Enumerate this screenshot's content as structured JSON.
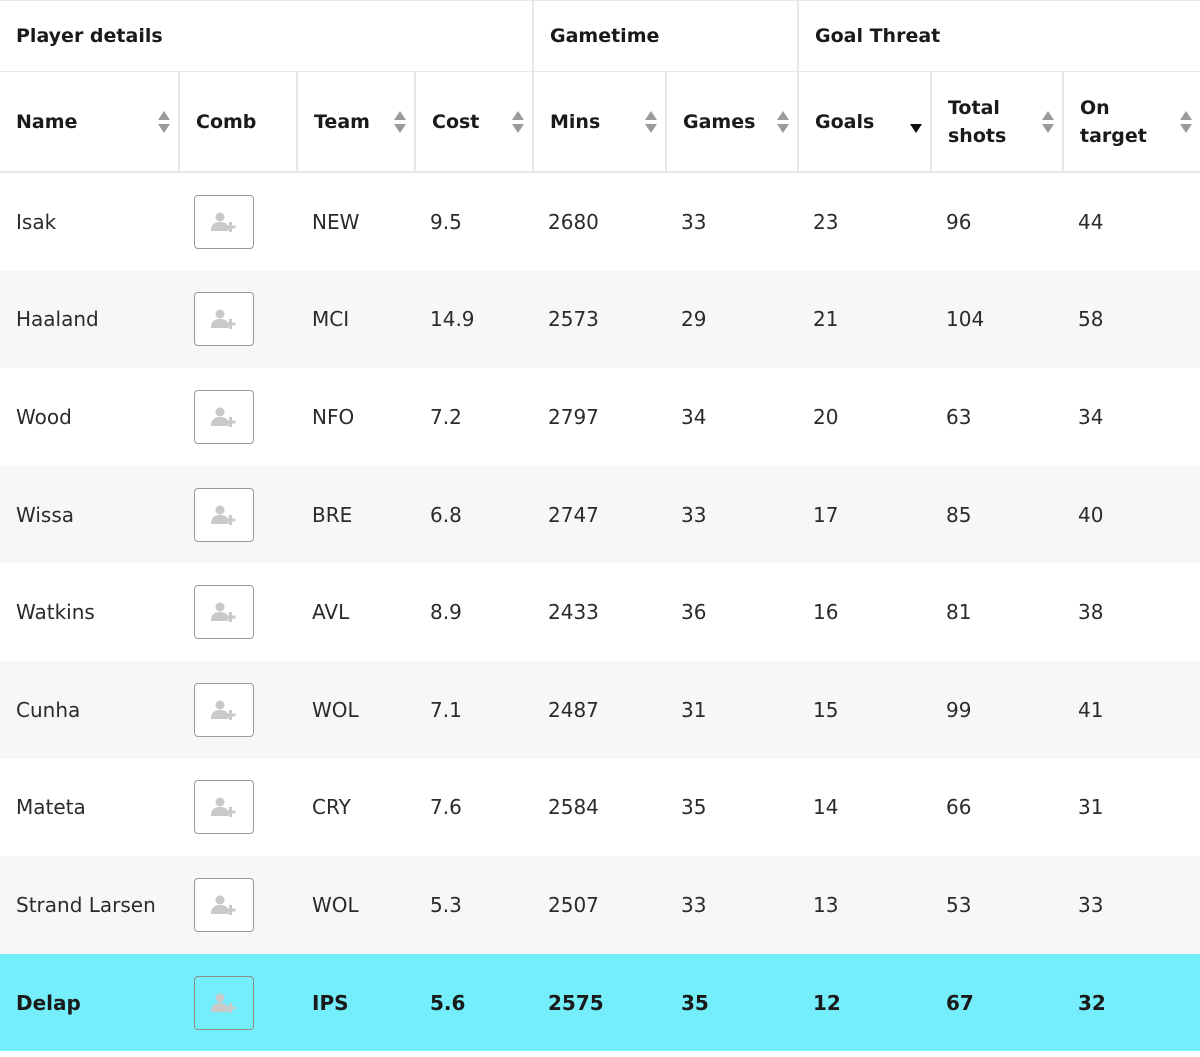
{
  "groups": [
    "Player details",
    "Gametime",
    "Goal Threat"
  ],
  "columns": {
    "name": "Name",
    "comb": "Comb",
    "team": "Team",
    "cost": "Cost",
    "mins": "Mins",
    "games": "Games",
    "goals": "Goals",
    "shots": "Total shots",
    "target": "On target"
  },
  "sort": {
    "column": "goals",
    "direction": "descending"
  },
  "icons": {
    "sort": "sort-arrows-icon",
    "add_player": "add-player-icon"
  },
  "colors": {
    "highlight": "#73eefa",
    "alt_row": "#f7f7f7",
    "border": "#e8e8e8"
  },
  "rows": [
    {
      "name": "Isak",
      "team": "NEW",
      "cost": "9.5",
      "mins": "2680",
      "games": "33",
      "goals": "23",
      "shots": "96",
      "target": "44"
    },
    {
      "name": "Haaland",
      "team": "MCI",
      "cost": "14.9",
      "mins": "2573",
      "games": "29",
      "goals": "21",
      "shots": "104",
      "target": "58"
    },
    {
      "name": "Wood",
      "team": "NFO",
      "cost": "7.2",
      "mins": "2797",
      "games": "34",
      "goals": "20",
      "shots": "63",
      "target": "34"
    },
    {
      "name": "Wissa",
      "team": "BRE",
      "cost": "6.8",
      "mins": "2747",
      "games": "33",
      "goals": "17",
      "shots": "85",
      "target": "40"
    },
    {
      "name": "Watkins",
      "team": "AVL",
      "cost": "8.9",
      "mins": "2433",
      "games": "36",
      "goals": "16",
      "shots": "81",
      "target": "38"
    },
    {
      "name": "Cunha",
      "team": "WOL",
      "cost": "7.1",
      "mins": "2487",
      "games": "31",
      "goals": "15",
      "shots": "99",
      "target": "41"
    },
    {
      "name": "Mateta",
      "team": "CRY",
      "cost": "7.6",
      "mins": "2584",
      "games": "35",
      "goals": "14",
      "shots": "66",
      "target": "31"
    },
    {
      "name": "Strand Larsen",
      "team": "WOL",
      "cost": "5.3",
      "mins": "2507",
      "games": "33",
      "goals": "13",
      "shots": "53",
      "target": "33"
    },
    {
      "name": "Delap",
      "team": "IPS",
      "cost": "5.6",
      "mins": "2575",
      "games": "35",
      "goals": "12",
      "shots": "67",
      "target": "32",
      "highlighted": true
    }
  ]
}
